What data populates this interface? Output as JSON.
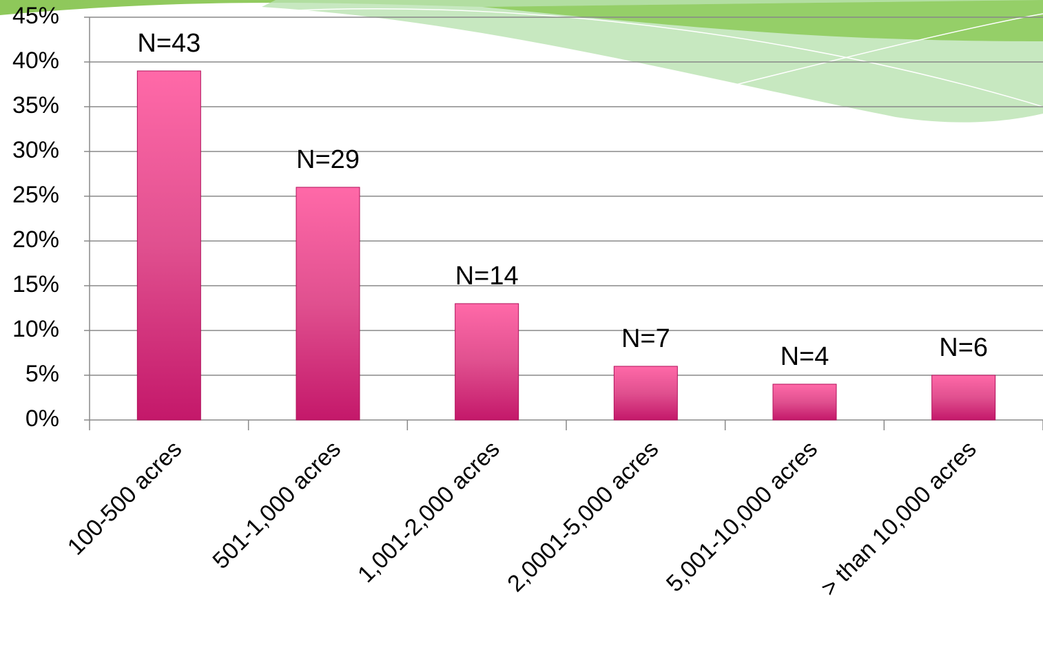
{
  "chart_data": {
    "type": "bar",
    "categories": [
      "100-500 acres",
      "501-1,000 acres",
      "1,001-2,000 acres",
      "2,0001-5,000 acres",
      "5,001-10,000 acres",
      "> than 10,000 acres"
    ],
    "values": [
      39,
      26,
      13,
      6,
      4,
      5
    ],
    "bar_labels": [
      "N=43",
      "N=29",
      "N=14",
      "N=7",
      "N=4",
      "N=6"
    ],
    "color": "#ff69a8",
    "ylim": [
      0,
      45
    ],
    "yticks": [
      {
        "value": 0,
        "label": "0%"
      },
      {
        "value": 5,
        "label": "5%"
      },
      {
        "value": 10,
        "label": "10%"
      },
      {
        "value": 15,
        "label": "15%"
      },
      {
        "value": 20,
        "label": "20%"
      },
      {
        "value": 25,
        "label": "25%"
      },
      {
        "value": 30,
        "label": "30%"
      },
      {
        "value": 35,
        "label": "35%"
      },
      {
        "value": 40,
        "label": "40%"
      },
      {
        "value": 45,
        "label": "45%"
      }
    ],
    "grid": true
  }
}
